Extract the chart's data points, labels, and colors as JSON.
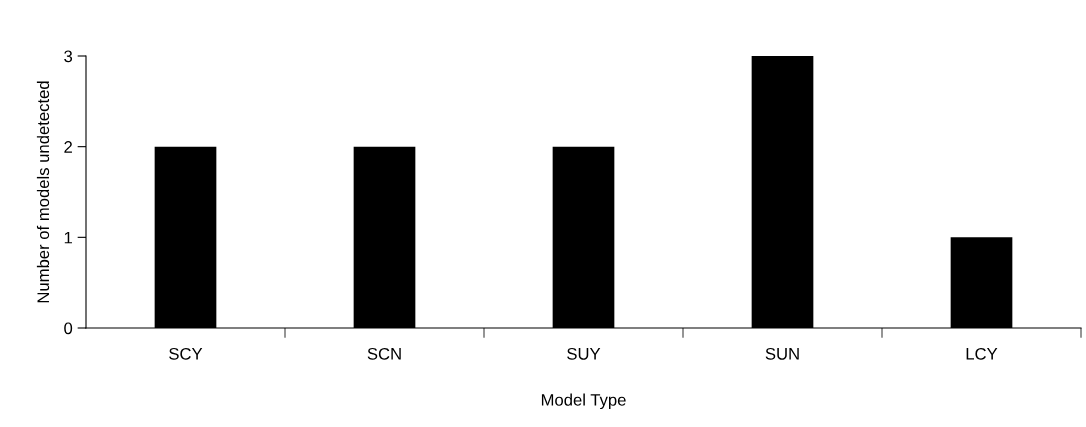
{
  "chart_data": {
    "type": "bar",
    "xlabel": "Model Type",
    "ylabel": "Number of models undetected",
    "categories": [
      "SCY",
      "SCN",
      "SUY",
      "SUN",
      "LCY"
    ],
    "values": [
      2,
      2,
      2,
      3,
      1
    ],
    "color": "#000000",
    "ylim": [
      0,
      3
    ],
    "yticks": [
      0,
      1,
      2,
      3
    ],
    "grid": false,
    "legend": false
  }
}
